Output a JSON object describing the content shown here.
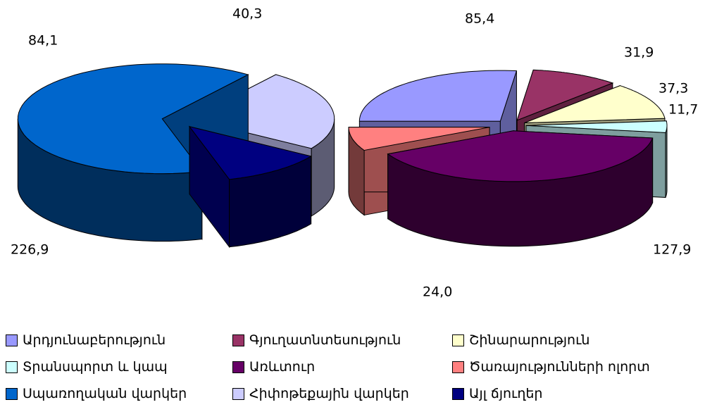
{
  "chart_data": [
    {
      "type": "pie",
      "style": "3d-exploded",
      "slices": [
        {
          "key": "cons",
          "label": "Սպառողական վարկեր",
          "value": 226.9,
          "value_label": "226,9",
          "color": "#0066CC"
        },
        {
          "key": "mort",
          "label": "Հիփոթեքային վարկեր",
          "value": 84.1,
          "value_label": "84,1",
          "color": "#CCCCFF"
        },
        {
          "key": "other",
          "label": "Այլ ճյուղեր",
          "value": 40.3,
          "value_label": "40,3",
          "color": "#000080"
        }
      ]
    },
    {
      "type": "pie",
      "style": "3d-exploded",
      "slices": [
        {
          "key": "ind",
          "label": "Արդյունաբերություն",
          "value": 85.4,
          "value_label": "85,4",
          "color": "#9999FF"
        },
        {
          "key": "agr",
          "label": "Գյուղատնտեսություն",
          "value": 31.9,
          "value_label": "31,9",
          "color": "#993366"
        },
        {
          "key": "con",
          "label": "Շինարարություն",
          "value": 37.3,
          "value_label": "37,3",
          "color": "#FFFFCC"
        },
        {
          "key": "tra",
          "label": "Տրանսպորտ և կապ",
          "value": 11.7,
          "value_label": "11,7",
          "color": "#CCFFFF"
        },
        {
          "key": "tr",
          "label": "Առևտուր",
          "value": 127.9,
          "value_label": "127,9",
          "color": "#660066"
        },
        {
          "key": "ser",
          "label": "Ծառայությունների ոլորտ",
          "value": 24.0,
          "value_label": "24,0",
          "color": "#FF8080"
        }
      ]
    }
  ],
  "legend": {
    "items": [
      {
        "label": "Արդյունաբերություն",
        "color": "#9999FF"
      },
      {
        "label": "Գյուղատնտեսություն",
        "color": "#993366"
      },
      {
        "label": "Շինարարություն",
        "color": "#FFFFCC"
      },
      {
        "label": "Տրանսպորտ և կապ",
        "color": "#CCFFFF"
      },
      {
        "label": "Առևտուր",
        "color": "#660066"
      },
      {
        "label": "Ծառայությունների ոլորտ",
        "color": "#FF8080"
      },
      {
        "label": "Սպառողական վարկեր",
        "color": "#0066CC"
      },
      {
        "label": "Հիփոթեքային վարկեր",
        "color": "#CCCCFF"
      },
      {
        "label": "Այլ ճյուղեր",
        "color": "#000080"
      }
    ]
  }
}
